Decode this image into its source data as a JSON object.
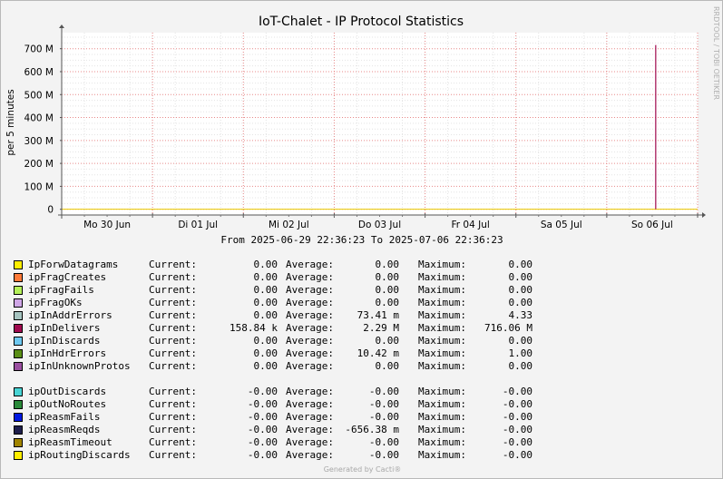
{
  "chart_data": {
    "type": "area",
    "title": "IoT-Chalet - IP Protocol Statistics",
    "ylabel": "per 5 minutes",
    "ylim": [
      -25,
      770
    ],
    "yticks": [
      {
        "value": 0,
        "label": "0"
      },
      {
        "value": 100,
        "label": "100 M"
      },
      {
        "value": 200,
        "label": "200 M"
      },
      {
        "value": 300,
        "label": "300 M"
      },
      {
        "value": 400,
        "label": "400 M"
      },
      {
        "value": 500,
        "label": "500 M"
      },
      {
        "value": 600,
        "label": "600 M"
      },
      {
        "value": 700,
        "label": "700 M"
      }
    ],
    "xrange_days": [
      0,
      7
    ],
    "xticks": [
      {
        "day": 0.5,
        "label": "Mo 30 Jun"
      },
      {
        "day": 1.5,
        "label": "Di 01 Jul"
      },
      {
        "day": 2.5,
        "label": "Mi 02 Jul"
      },
      {
        "day": 3.5,
        "label": "Do 03 Jul"
      },
      {
        "day": 4.5,
        "label": "Fr 04 Jul"
      },
      {
        "day": 5.5,
        "label": "Sa 05 Jul"
      },
      {
        "day": 6.5,
        "label": "So 06 Jul"
      }
    ],
    "range_text": "From 2025-06-29 22:36:23 To 2025-07-06 22:36:23",
    "watermark": "RRDTOOL / TOBI OETIKER",
    "spike": {
      "series": "ipInDelivers",
      "day_start": 6.533,
      "day_end": 6.545,
      "value": 716.06,
      "color": "#a00a4f"
    },
    "baseline_color": "#e8c800",
    "legend_groups": [
      [
        {
          "name": "IpForwDatagrams",
          "color": "#ffee00",
          "current": "0.00",
          "average": "0.00",
          "maximum": "0.00"
        },
        {
          "name": "ipFragCreates",
          "color": "#ff7a39",
          "current": "0.00",
          "average": "0.00",
          "maximum": "0.00"
        },
        {
          "name": "ipFragFails",
          "color": "#b4f05a",
          "current": "0.00",
          "average": "0.00",
          "maximum": "0.00"
        },
        {
          "name": "ipFragOKs",
          "color": "#cfa6e6",
          "current": "0.00",
          "average": "0.00",
          "maximum": "0.00"
        },
        {
          "name": "ipInAddrErrors",
          "color": "#a6c4c0",
          "current": "0.00",
          "average": "73.41 m",
          "maximum": "4.33"
        },
        {
          "name": "ipInDelivers",
          "color": "#a00a4f",
          "current": "158.84 k",
          "average": "2.29 M",
          "maximum": "716.06 M"
        },
        {
          "name": "ipInDiscards",
          "color": "#6ec8f0",
          "current": "0.00",
          "average": "0.00",
          "maximum": "0.00"
        },
        {
          "name": "ipInHdrErrors",
          "color": "#5a8e16",
          "current": "0.00",
          "average": "10.42 m",
          "maximum": "1.00"
        },
        {
          "name": "ipInUnknownProtos",
          "color": "#9a4fa0",
          "current": "0.00",
          "average": "0.00",
          "maximum": "0.00"
        }
      ],
      [
        {
          "name": "ipOutDiscards",
          "color": "#48d4d4",
          "current": "-0.00",
          "average": "-0.00",
          "maximum": "-0.00"
        },
        {
          "name": "ipOutNoRoutes",
          "color": "#2a8a3a",
          "current": "-0.00",
          "average": "-0.00",
          "maximum": "-0.00"
        },
        {
          "name": "ipReasmFails",
          "color": "#0018e0",
          "current": "-0.00",
          "average": "-0.00",
          "maximum": "-0.00"
        },
        {
          "name": "ipReasmReqds",
          "color": "#1f1f4c",
          "current": "-0.00",
          "average": "-656.38 m",
          "maximum": "-0.00"
        },
        {
          "name": "ipReasmTimeout",
          "color": "#a08400",
          "current": "-0.00",
          "average": "-0.00",
          "maximum": "-0.00"
        },
        {
          "name": "ipRoutingDiscards",
          "color": "#ffee00",
          "current": "-0.00",
          "average": "-0.00",
          "maximum": "-0.00"
        }
      ]
    ]
  },
  "legend_labels": {
    "current": "Current:",
    "average": "Average:",
    "maximum": "Maximum:"
  },
  "footer": "Generated by Cacti®"
}
